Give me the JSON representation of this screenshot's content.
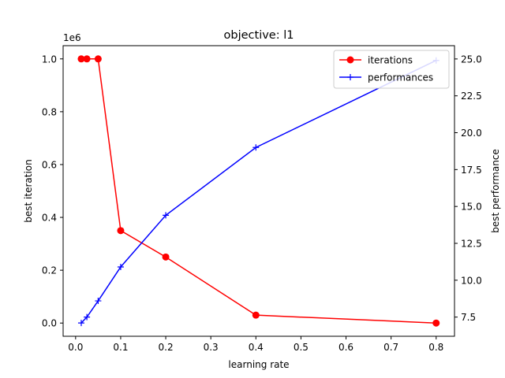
{
  "chart_data": {
    "type": "line",
    "title": "objective: l1",
    "xlabel": "learning rate",
    "ylabel_left": "best iteration",
    "ylabel_right": "best performance",
    "left_axis_multiplier": "1e6",
    "xlim": [
      -0.0277,
      0.8407
    ],
    "ylim_left": [
      -0.05,
      1.05
    ],
    "ylim_right": [
      6.2,
      25.9
    ],
    "x_ticks": [
      0.0,
      0.1,
      0.2,
      0.3,
      0.4,
      0.5,
      0.6,
      0.7,
      0.8
    ],
    "x_tick_labels": [
      "0.0",
      "0.1",
      "0.2",
      "0.3",
      "0.4",
      "0.5",
      "0.6",
      "0.7",
      "0.8"
    ],
    "y_left_ticks": [
      0.0,
      0.2,
      0.4,
      0.6,
      0.8,
      1.0
    ],
    "y_left_tick_labels": [
      "0.0",
      "0.2",
      "0.4",
      "0.6",
      "0.8",
      "1.0"
    ],
    "y_right_ticks": [
      7.5,
      10.0,
      12.5,
      15.0,
      17.5,
      20.0,
      22.5,
      25.0
    ],
    "y_right_tick_labels": [
      "7.5",
      "10.0",
      "12.5",
      "15.0",
      "17.5",
      "20.0",
      "22.5",
      "25.0"
    ],
    "legend_position": "top-right",
    "grid": false,
    "series": [
      {
        "name": "iterations",
        "axis": "left",
        "color": "#ff0000",
        "marker": "circle",
        "x": [
          0.0125,
          0.025,
          0.05,
          0.1,
          0.2,
          0.4,
          0.8
        ],
        "y": [
          1.0,
          1.0,
          1.0,
          0.35,
          0.25,
          0.03,
          0.0
        ]
      },
      {
        "name": "performances",
        "axis": "right",
        "color": "#0000ff",
        "marker": "plus",
        "x": [
          0.0125,
          0.025,
          0.05,
          0.1,
          0.2,
          0.4,
          0.8
        ],
        "y": [
          7.1,
          7.5,
          8.6,
          10.9,
          14.4,
          19.0,
          24.9
        ]
      }
    ]
  }
}
